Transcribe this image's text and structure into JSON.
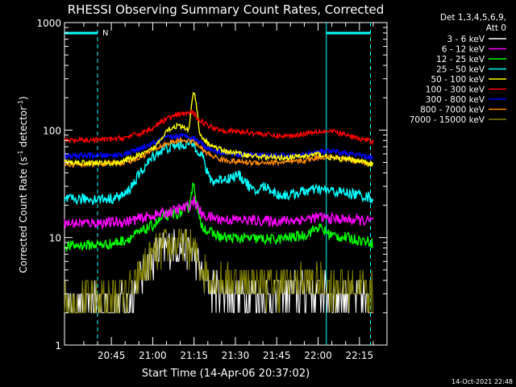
{
  "chart_data": {
    "type": "line",
    "title": "RHESSI Observing Summary Count Rates, Corrected",
    "xlabel": "Start Time (14-Apr-06 20:37:02)",
    "ylabel_main": "Corrected Count Rate (s",
    "ylabel_sup1": "-1",
    "ylabel_mid": " detector",
    "ylabel_sup2": "-1",
    "ylabel_end": ")",
    "yscale": "log",
    "ylim": [
      1,
      1000
    ],
    "xlim_minutes": [
      -17,
      100
    ],
    "x_tick_labels": [
      "20:45",
      "21:00",
      "21:15",
      "21:30",
      "21:45",
      "22:00",
      "22:15"
    ],
    "x_tick_minutes": [
      0,
      15,
      30,
      45,
      60,
      75,
      90
    ],
    "y_tick_labels": [
      "1",
      "10",
      "100",
      "1000"
    ],
    "y_tick_values": [
      1,
      10,
      100,
      1000
    ],
    "legend_header": [
      "Det 1,3,4,5,6,9,",
      "Att 0"
    ],
    "legend_position": "right",
    "footer_timestamp": "14-Oct-2021 22:48",
    "night_marker_label": "N",
    "background": "#000000",
    "series": [
      {
        "name": "3 - 6 keV",
        "color": "#ffffff",
        "x": [
          -17,
          -10,
          -5,
          0,
          5,
          8,
          10,
          13,
          16,
          20,
          24,
          27,
          30,
          32,
          35,
          40,
          50,
          60,
          70,
          80,
          90,
          95
        ],
        "y": [
          2.3,
          2.3,
          2.4,
          2.2,
          2.6,
          3.0,
          4.0,
          5.5,
          7.0,
          8.0,
          8.3,
          8.0,
          7.0,
          5.0,
          3.6,
          3.2,
          3.0,
          2.9,
          3.3,
          3.0,
          2.8,
          2.4
        ]
      },
      {
        "name": "6 - 12 keV",
        "color": "#ff00ff",
        "x": [
          -17,
          -10,
          0,
          5,
          10,
          15,
          20,
          25,
          28,
          30,
          31,
          33,
          40,
          50,
          60,
          70,
          75,
          80,
          90,
          95
        ],
        "y": [
          13.5,
          13.7,
          13.8,
          14,
          15,
          16,
          17,
          18.5,
          19.5,
          22,
          20,
          16,
          14.8,
          14.5,
          14.2,
          14.8,
          15.5,
          15,
          14.5,
          14.2
        ]
      },
      {
        "name": "12 - 25 keV",
        "color": "#00ff00",
        "x": [
          -17,
          -10,
          0,
          5,
          10,
          15,
          20,
          25,
          28,
          29,
          30,
          31,
          32,
          35,
          40,
          50,
          60,
          70,
          75,
          80,
          90,
          95
        ],
        "y": [
          8.3,
          8.5,
          8.7,
          9.5,
          11,
          13,
          16,
          17,
          19,
          26,
          33,
          20,
          14,
          11.5,
          10,
          9.8,
          9.6,
          10.5,
          12.5,
          10.5,
          9.5,
          9
        ]
      },
      {
        "name": "25 - 50 keV",
        "color": "#00ffff",
        "x": [
          -17,
          -10,
          0,
          5,
          8,
          12,
          16,
          20,
          24,
          28,
          30,
          33,
          35,
          37,
          40,
          43,
          46,
          48,
          50,
          52,
          55,
          58,
          60,
          65,
          70,
          75,
          80,
          85,
          90,
          95
        ],
        "y": [
          22.5,
          22.8,
          23,
          25,
          32,
          45,
          60,
          68,
          72,
          74,
          73,
          58,
          38,
          33,
          35,
          36,
          38,
          35,
          30,
          26,
          30,
          28,
          25,
          25,
          27,
          28,
          27,
          26,
          25,
          23
        ]
      },
      {
        "name": "50 - 100 keV",
        "color": "#ffff00",
        "x": [
          -17,
          -10,
          0,
          5,
          10,
          13,
          16,
          20,
          24,
          28,
          29,
          30,
          31,
          32,
          35,
          40,
          50,
          60,
          70,
          75,
          80,
          90,
          95
        ],
        "y": [
          50,
          50,
          49,
          52,
          58,
          62,
          70,
          100,
          110,
          100,
          160,
          230,
          160,
          90,
          75,
          65,
          58,
          55,
          57,
          60,
          55,
          52,
          48
        ]
      },
      {
        "name": "100 - 300 keV",
        "color": "#ff0000",
        "x": [
          -17,
          -10,
          0,
          5,
          10,
          15,
          20,
          25,
          28,
          30,
          32,
          35,
          40,
          45,
          50,
          55,
          60,
          65,
          70,
          75,
          80,
          85,
          90,
          95
        ],
        "y": [
          80,
          80,
          82,
          85,
          92,
          105,
          128,
          140,
          145,
          142,
          125,
          110,
          100,
          97,
          95,
          92,
          88,
          88,
          93,
          98,
          97,
          90,
          83,
          78
        ]
      },
      {
        "name": "300 - 800 keV",
        "color": "#0000ff",
        "x": [
          -17,
          -10,
          0,
          5,
          10,
          15,
          20,
          25,
          28,
          30,
          32,
          35,
          40,
          45,
          50,
          55,
          60,
          65,
          70,
          75,
          80,
          85,
          90,
          95
        ],
        "y": [
          57,
          58,
          58,
          60,
          66,
          75,
          85,
          88,
          88,
          85,
          78,
          68,
          62,
          60,
          59,
          58,
          58,
          57,
          59,
          63,
          63,
          61,
          58,
          55
        ]
      },
      {
        "name": "800 - 7000 keV",
        "color": "#ff8c00",
        "x": [
          -17,
          -10,
          0,
          5,
          10,
          15,
          20,
          25,
          28,
          30,
          32,
          35,
          40,
          45,
          50,
          55,
          60,
          65,
          70,
          75,
          80,
          85,
          90,
          95
        ],
        "y": [
          48,
          48,
          49,
          50,
          55,
          65,
          75,
          80,
          80,
          78,
          70,
          60,
          53,
          51,
          50,
          50,
          50,
          50,
          52,
          56,
          56,
          54,
          51,
          48
        ]
      },
      {
        "name": "7000 - 15000 keV",
        "color": "#808000",
        "x": [
          -17,
          -10,
          -5,
          0,
          5,
          8,
          10,
          13,
          16,
          20,
          24,
          27,
          30,
          32,
          35,
          40,
          50,
          60,
          70,
          80,
          90,
          95
        ],
        "y": [
          2.6,
          2.7,
          2.7,
          2.9,
          3.1,
          3.3,
          4.2,
          5.8,
          7.2,
          8.3,
          8.6,
          8.3,
          7.5,
          5.6,
          4.5,
          4.0,
          3.8,
          3.6,
          3.9,
          3.6,
          3.5,
          3.2
        ]
      }
    ],
    "attenuator_bars": [
      {
        "x_minutes": [
          -17,
          -5
        ]
      },
      {
        "x_minutes": [
          78,
          94
        ]
      }
    ],
    "night_lines_minutes": [
      {
        "x": -5,
        "style": "dashed"
      },
      {
        "x": 78,
        "style": "solid"
      },
      {
        "x": 94,
        "style": "dashed"
      }
    ],
    "marker_color": "#00ffff"
  }
}
